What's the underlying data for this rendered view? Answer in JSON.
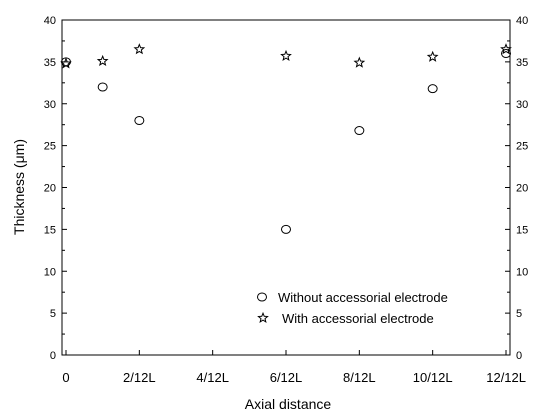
{
  "chart_data": {
    "type": "scatter",
    "title": "",
    "xlabel": "Axial distance",
    "ylabel": "Thickness (μm)",
    "xlim": [
      0,
      12
    ],
    "ylim": [
      0,
      40
    ],
    "x_ticks": [
      {
        "value": 0,
        "label": "0"
      },
      {
        "value": 2,
        "label": "2/12L"
      },
      {
        "value": 4,
        "label": "4/12L"
      },
      {
        "value": 6,
        "label": "6/12L"
      },
      {
        "value": 8,
        "label": "8/12L"
      },
      {
        "value": 10,
        "label": "10/12L"
      },
      {
        "value": 12,
        "label": "12/12L"
      }
    ],
    "y_ticks": [
      0,
      5,
      10,
      15,
      20,
      25,
      30,
      35,
      40
    ],
    "y_ticks_right": true,
    "grid": false,
    "legend_position": "bottom-right",
    "series": [
      {
        "name": "Without accessorial electrode",
        "marker": "circle",
        "points": [
          {
            "x": 0,
            "y": 35
          },
          {
            "x": 1,
            "y": 32
          },
          {
            "x": 2,
            "y": 28
          },
          {
            "x": 6,
            "y": 15
          },
          {
            "x": 8,
            "y": 26.8
          },
          {
            "x": 10,
            "y": 31.8
          },
          {
            "x": 12,
            "y": 36
          }
        ]
      },
      {
        "name": "With accessorial electrode",
        "marker": "star",
        "points": [
          {
            "x": 0,
            "y": 34.8
          },
          {
            "x": 1,
            "y": 35.1
          },
          {
            "x": 2,
            "y": 36.5
          },
          {
            "x": 6,
            "y": 35.7
          },
          {
            "x": 8,
            "y": 34.9
          },
          {
            "x": 10,
            "y": 35.6
          },
          {
            "x": 12,
            "y": 36.5
          }
        ]
      }
    ]
  }
}
